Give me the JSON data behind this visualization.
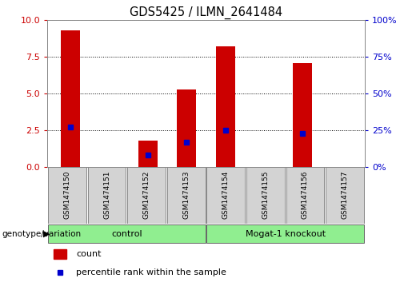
{
  "title": "GDS5425 / ILMN_2641484",
  "samples": [
    "GSM1474150",
    "GSM1474151",
    "GSM1474152",
    "GSM1474153",
    "GSM1474154",
    "GSM1474155",
    "GSM1474156",
    "GSM1474157"
  ],
  "counts": [
    9.3,
    0.0,
    1.8,
    5.3,
    8.2,
    0.0,
    7.1,
    0.0
  ],
  "percentile_ranks": [
    27,
    0,
    8,
    17,
    25,
    0,
    23,
    0
  ],
  "groups": [
    {
      "label": "control",
      "start": 0,
      "end": 4,
      "color": "#90EE90"
    },
    {
      "label": "Mogat-1 knockout",
      "start": 4,
      "end": 8,
      "color": "#90EE90"
    }
  ],
  "group_label_prefix": "genotype/variation",
  "ylim_left": [
    0,
    10
  ],
  "ylim_right": [
    0,
    100
  ],
  "yticks_left": [
    0,
    2.5,
    5.0,
    7.5,
    10
  ],
  "yticks_right": [
    0,
    25,
    50,
    75,
    100
  ],
  "bar_color": "#CC0000",
  "dot_color": "#0000CC",
  "bg_color": "#FFFFFF",
  "left_tick_color": "#CC0000",
  "right_tick_color": "#0000CC",
  "bar_width": 0.5,
  "sample_box_color": "#D3D3D3",
  "sample_box_edge": "#888888",
  "plot_bg": "#FFFFFF",
  "legend_count_label": "count",
  "legend_pct_label": "percentile rank within the sample"
}
